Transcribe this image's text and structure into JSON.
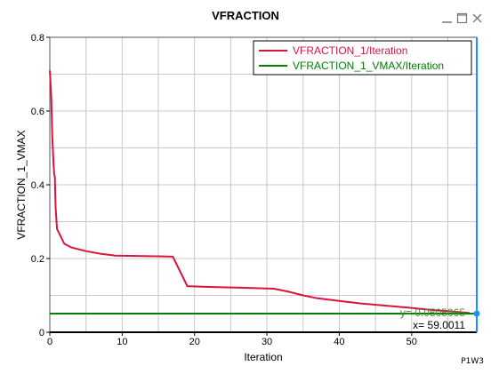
{
  "window": {
    "title": "VFRACTION",
    "page_tag": "P1W3",
    "icons": [
      "minimize-icon",
      "maximize-icon",
      "close-icon"
    ]
  },
  "readout": {
    "y_text": "y= 0.0505065",
    "x_text": "x= 59.0011"
  },
  "chart_data": {
    "type": "line",
    "title": "VFRACTION",
    "xlabel": "Iteration",
    "ylabel": "VFRACTION_1_VMAX",
    "xlim": [
      0,
      59
    ],
    "ylim": [
      0,
      0.8
    ],
    "xticks": [
      0,
      10,
      20,
      30,
      40,
      50
    ],
    "yticks": [
      0,
      0.2,
      0.4,
      0.6,
      0.8
    ],
    "grid": true,
    "legend_position": "top-right",
    "series": [
      {
        "name": "VFRACTION_1/Iteration",
        "color": "#dc143c",
        "x": [
          0,
          0.2,
          0.35,
          0.5,
          0.6,
          0.7,
          0.8,
          1,
          1.5,
          2,
          3,
          5,
          7,
          9,
          12,
          15,
          17,
          19,
          22,
          26,
          28,
          31,
          33,
          35,
          37,
          40,
          43,
          46,
          50,
          53,
          55,
          57,
          58
        ],
        "y": [
          0.71,
          0.64,
          0.53,
          0.46,
          0.43,
          0.42,
          0.34,
          0.28,
          0.26,
          0.24,
          0.23,
          0.22,
          0.213,
          0.208,
          0.207,
          0.206,
          0.205,
          0.125,
          0.123,
          0.121,
          0.12,
          0.118,
          0.11,
          0.1,
          0.092,
          0.085,
          0.078,
          0.073,
          0.066,
          0.06,
          0.057,
          0.054,
          0.052
        ]
      },
      {
        "name": "VFRACTION_1_VMAX/Iteration",
        "color": "#008000",
        "x": [
          0,
          59
        ],
        "y": [
          0.0505,
          0.0505
        ]
      }
    ],
    "cursor": {
      "x": 59.0011,
      "y": 0.0505065,
      "color": "#1e90ff"
    }
  }
}
